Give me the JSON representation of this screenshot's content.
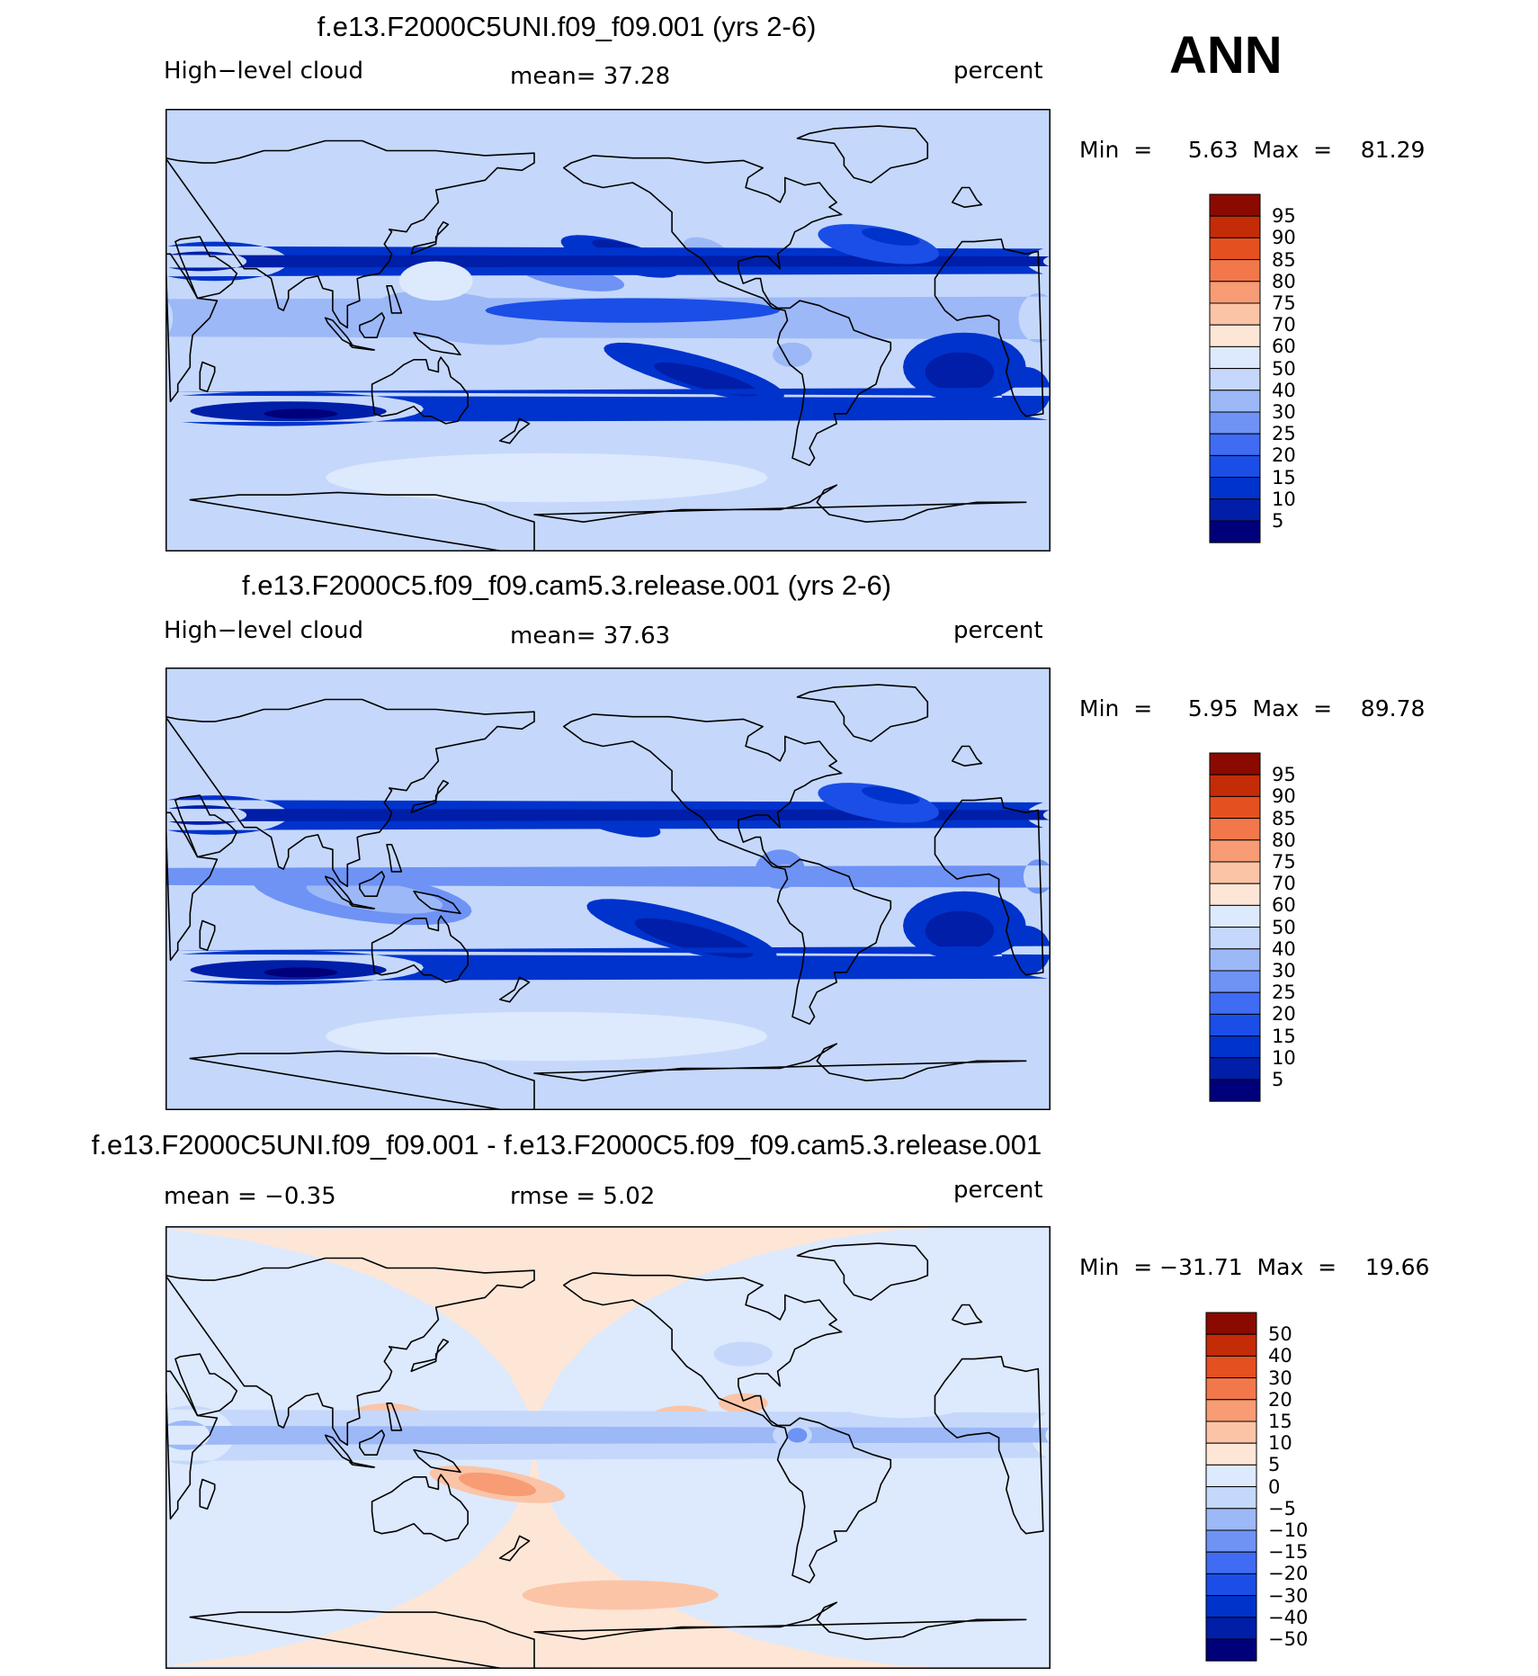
{
  "season": "ANN",
  "colors": {
    "abs_scale": [
      "#00007a",
      "#001ea8",
      "#0033cc",
      "#1a4ee6",
      "#3f6cf2",
      "#6e93f5",
      "#9cb8f7",
      "#c5d8fb",
      "#dde9fd",
      "#fde6d6",
      "#fbc4a6",
      "#f79c74",
      "#f2784c",
      "#e55020",
      "#c42c08",
      "#8b0a00"
    ],
    "diff_scale": [
      "#00007a",
      "#001ea8",
      "#0033cc",
      "#1a4ee6",
      "#3f6cf2",
      "#6e93f5",
      "#9cb8f7",
      "#c5d8fb",
      "#dde9fd",
      "#fde6d6",
      "#fbc4a6",
      "#f79c74",
      "#f2784c",
      "#e55020",
      "#c42c08",
      "#8b0a00"
    ]
  },
  "panels": [
    {
      "title": "f.e13.F2000C5UNI.f09_f09.001 (yrs 2-6)",
      "left_label": "High−level cloud",
      "center_label": "mean=   37.28",
      "right_label": "percent",
      "min_max": "Min  =     5.63  Max  =    81.29",
      "colorbar_labels": [
        "95",
        "90",
        "85",
        "80",
        "75",
        "70",
        "60",
        "50",
        "40",
        "30",
        "25",
        "20",
        "15",
        "10",
        "5"
      ]
    },
    {
      "title": "f.e13.F2000C5.f09_f09.cam5.3.release.001 (yrs 2-6)",
      "left_label": "High−level cloud",
      "center_label": "mean=   37.63",
      "right_label": "percent",
      "min_max": "Min  =     5.95  Max  =    89.78",
      "colorbar_labels": [
        "95",
        "90",
        "85",
        "80",
        "75",
        "70",
        "60",
        "50",
        "40",
        "30",
        "25",
        "20",
        "15",
        "10",
        "5"
      ]
    },
    {
      "title": "f.e13.F2000C5UNI.f09_f09.001 - f.e13.F2000C5.f09_f09.cam5.3.release.001",
      "left_label": "mean  =   −0.35",
      "center_label": "rmse  =     5.02",
      "right_label": "percent",
      "min_max": "Min  = −31.71  Max  =    19.66",
      "colorbar_labels": [
        "50",
        "40",
        "30",
        "20",
        "15",
        "10",
        "5",
        "0",
        "−5",
        "−10",
        "−15",
        "−20",
        "−30",
        "−40",
        "−50"
      ]
    }
  ]
}
